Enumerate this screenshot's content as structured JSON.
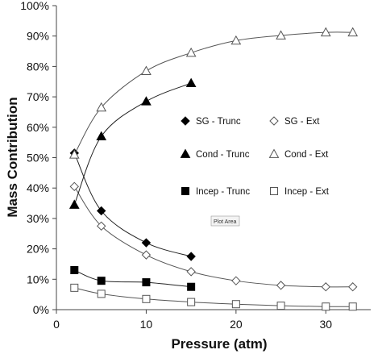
{
  "chart_data": {
    "type": "line",
    "xlabel": "Pressure (atm)",
    "ylabel": "Mass Contribution",
    "xlim": [
      0,
      35
    ],
    "ylim": [
      0,
      100
    ],
    "xticks": [
      0,
      10,
      20,
      30
    ],
    "yticks": [
      0,
      10,
      20,
      30,
      40,
      50,
      60,
      70,
      80,
      90,
      100
    ],
    "ytick_suffix": "%",
    "grid": false,
    "legend_position": "right-center",
    "series": [
      {
        "name": "SG - Trunc",
        "marker": "diamond",
        "filled": true,
        "x": [
          2,
          5,
          10,
          15
        ],
        "y": [
          51.5,
          32.5,
          22,
          17.5
        ]
      },
      {
        "name": "SG - Ext",
        "marker": "diamond",
        "filled": false,
        "x": [
          2,
          5,
          10,
          15,
          20,
          25,
          30,
          33
        ],
        "y": [
          40.5,
          27.5,
          18,
          12.5,
          9.5,
          8,
          7.5,
          7.5
        ]
      },
      {
        "name": "Cond - Trunc",
        "marker": "triangle",
        "filled": true,
        "x": [
          2,
          5,
          10,
          15
        ],
        "y": [
          34.5,
          57,
          68.5,
          74.5
        ]
      },
      {
        "name": "Cond - Ext",
        "marker": "triangle",
        "filled": false,
        "x": [
          2,
          5,
          10,
          15,
          20,
          25,
          30,
          33
        ],
        "y": [
          51,
          66.5,
          78.5,
          84.5,
          88.5,
          90.2,
          91.2,
          91.2
        ]
      },
      {
        "name": "Incep - Trunc",
        "marker": "square",
        "filled": true,
        "x": [
          2,
          5,
          10,
          15
        ],
        "y": [
          13,
          9.5,
          9,
          7.5
        ]
      },
      {
        "name": "Incep - Ext",
        "marker": "square",
        "filled": false,
        "x": [
          2,
          5,
          10,
          15,
          20,
          25,
          30,
          33
        ],
        "y": [
          7.2,
          5.2,
          3.5,
          2.5,
          1.8,
          1.3,
          1.0,
          1.0
        ]
      }
    ],
    "annotations": [
      "Plot Area"
    ]
  }
}
